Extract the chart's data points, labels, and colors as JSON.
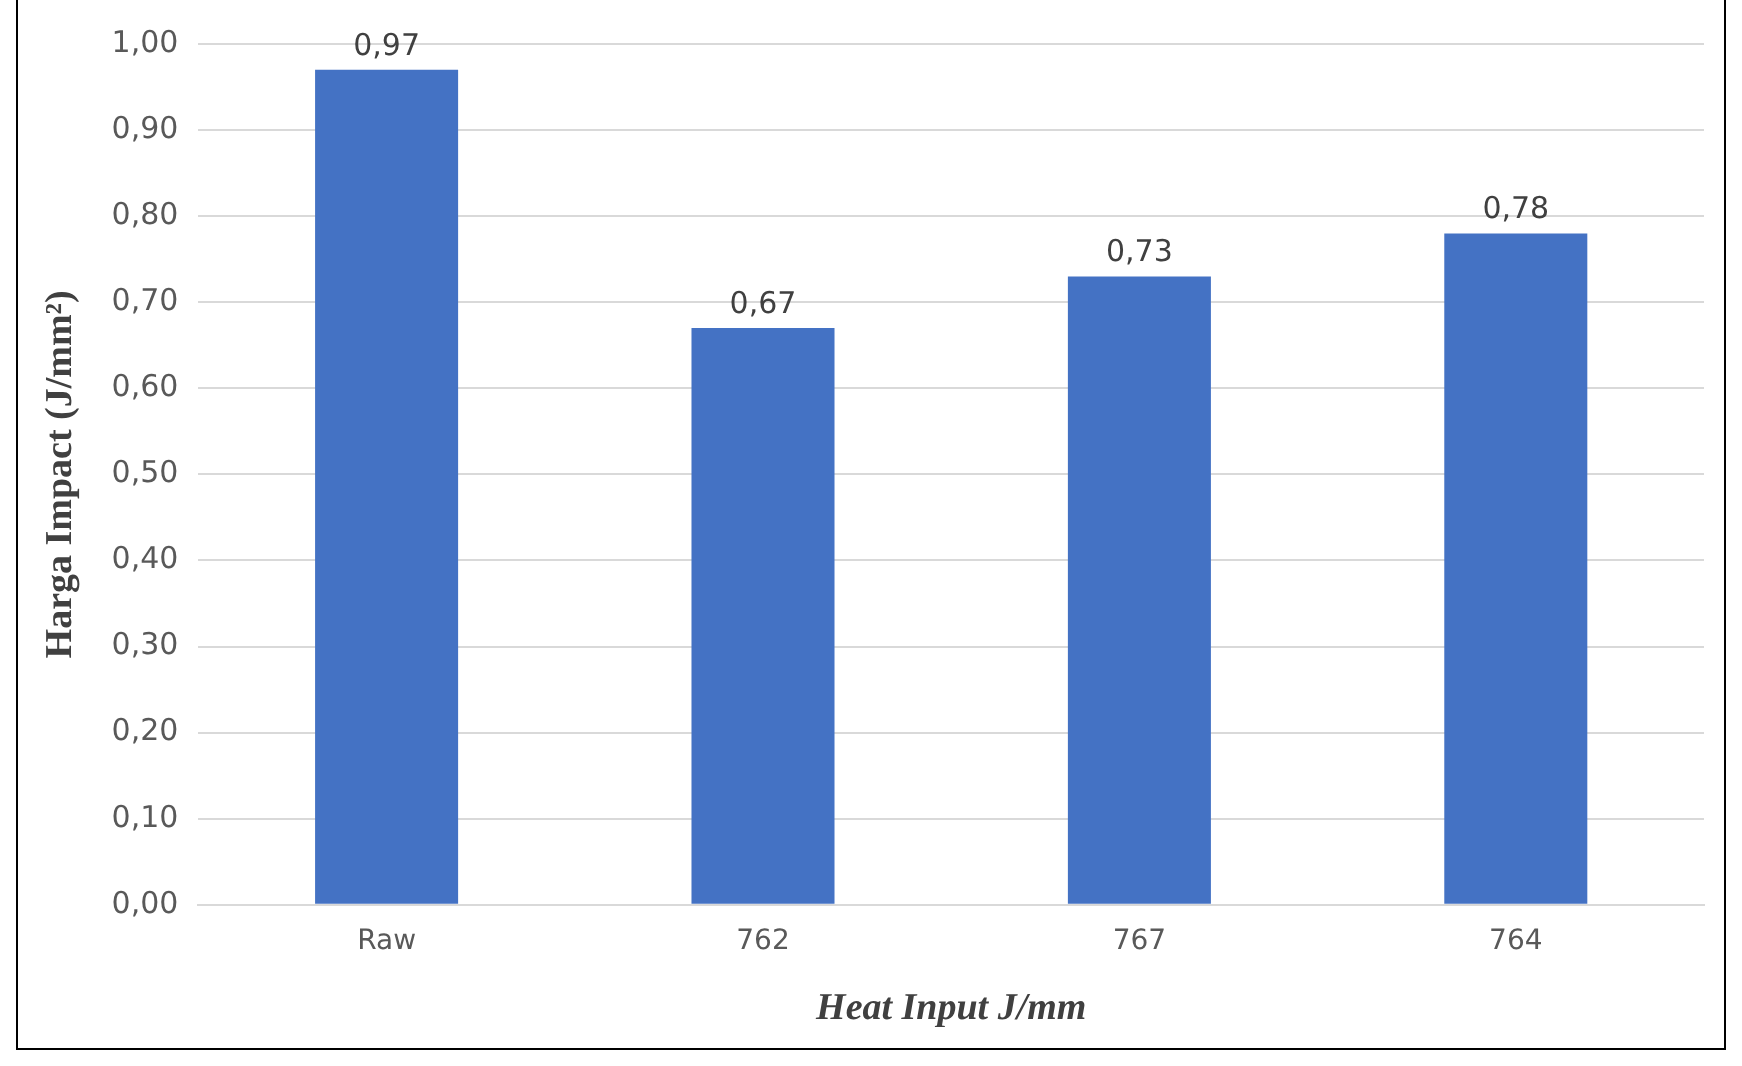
{
  "chart_data": {
    "type": "bar",
    "xlabel": "Heat Input J/mm",
    "ylabel": "Harga Impact (J/mm²)",
    "categories": [
      "Raw",
      "762",
      "767",
      "764"
    ],
    "values": [
      0.97,
      0.67,
      0.73,
      0.78
    ],
    "color": "#4472c4",
    "value_labels": [
      "0,97",
      "0,67",
      "0,73",
      "0,78"
    ],
    "ylim": [
      0,
      1
    ],
    "yticks": [
      {
        "value": 0,
        "label": "0,00"
      },
      {
        "value": 0.1,
        "label": "0,10"
      },
      {
        "value": 0.2,
        "label": "0,20"
      },
      {
        "value": 0.3,
        "label": "0,30"
      },
      {
        "value": 0.4,
        "label": "0,40"
      },
      {
        "value": 0.5,
        "label": "0,50"
      },
      {
        "value": 0.6,
        "label": "0,60"
      },
      {
        "value": 0.7,
        "label": "0,70"
      },
      {
        "value": 0.8,
        "label": "0,80"
      },
      {
        "value": 0.9,
        "label": "0,90"
      },
      {
        "value": 1,
        "label": "1,00"
      }
    ],
    "grid": "y"
  }
}
